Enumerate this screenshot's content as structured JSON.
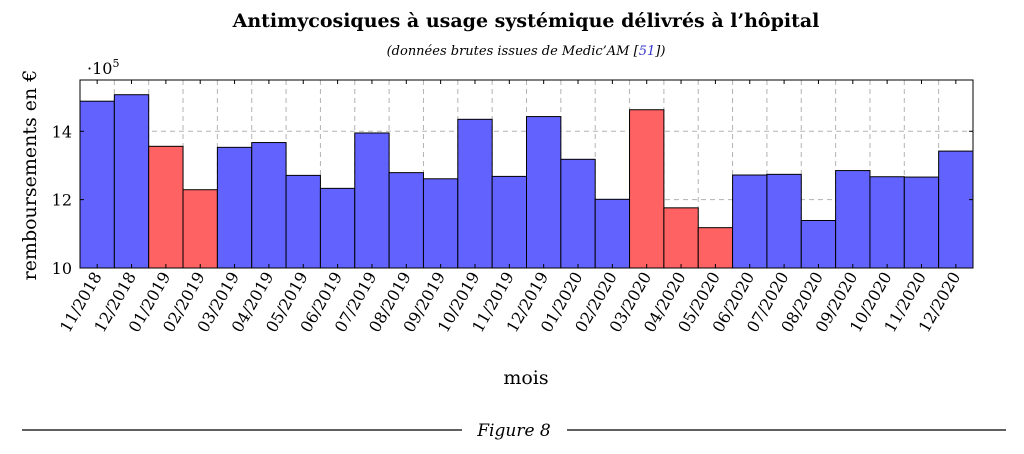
{
  "caption": "Figure 8",
  "chart_data": {
    "type": "bar",
    "title": "Antimycosiques à usage systémique délivrés à l’hôpital",
    "subtitle_prefix": "(données brutes issues de Medic’AM [",
    "subtitle_ref": "51",
    "subtitle_suffix": "])",
    "xlabel": "mois",
    "ylabel": "remboursements en €",
    "y_scale_label": "·10",
    "y_scale_exponent": "5",
    "ylim": [
      10,
      15.5
    ],
    "yticks": [
      10,
      12,
      14
    ],
    "grid": true,
    "categories": [
      "11/2018",
      "12/2018",
      "01/2019",
      "02/2019",
      "03/2019",
      "04/2019",
      "05/2019",
      "06/2019",
      "07/2019",
      "08/2019",
      "09/2019",
      "10/2019",
      "11/2019",
      "12/2019",
      "01/2020",
      "02/2020",
      "03/2020",
      "04/2020",
      "05/2020",
      "06/2020",
      "07/2020",
      "08/2020",
      "09/2020",
      "10/2020",
      "11/2020",
      "12/2020"
    ],
    "values": [
      14.88,
      15.07,
      13.56,
      12.29,
      13.53,
      13.67,
      12.71,
      12.33,
      13.95,
      12.79,
      12.61,
      14.35,
      12.68,
      14.43,
      13.18,
      12.01,
      14.63,
      11.76,
      11.18,
      12.72,
      12.74,
      11.39,
      12.85,
      12.67,
      12.66,
      13.42
    ],
    "colors": {
      "default": "#6262ff",
      "highlight": "#ff6262"
    },
    "highlighted_categories": [
      "01/2019",
      "02/2019",
      "03/2020",
      "04/2020",
      "05/2020"
    ]
  }
}
